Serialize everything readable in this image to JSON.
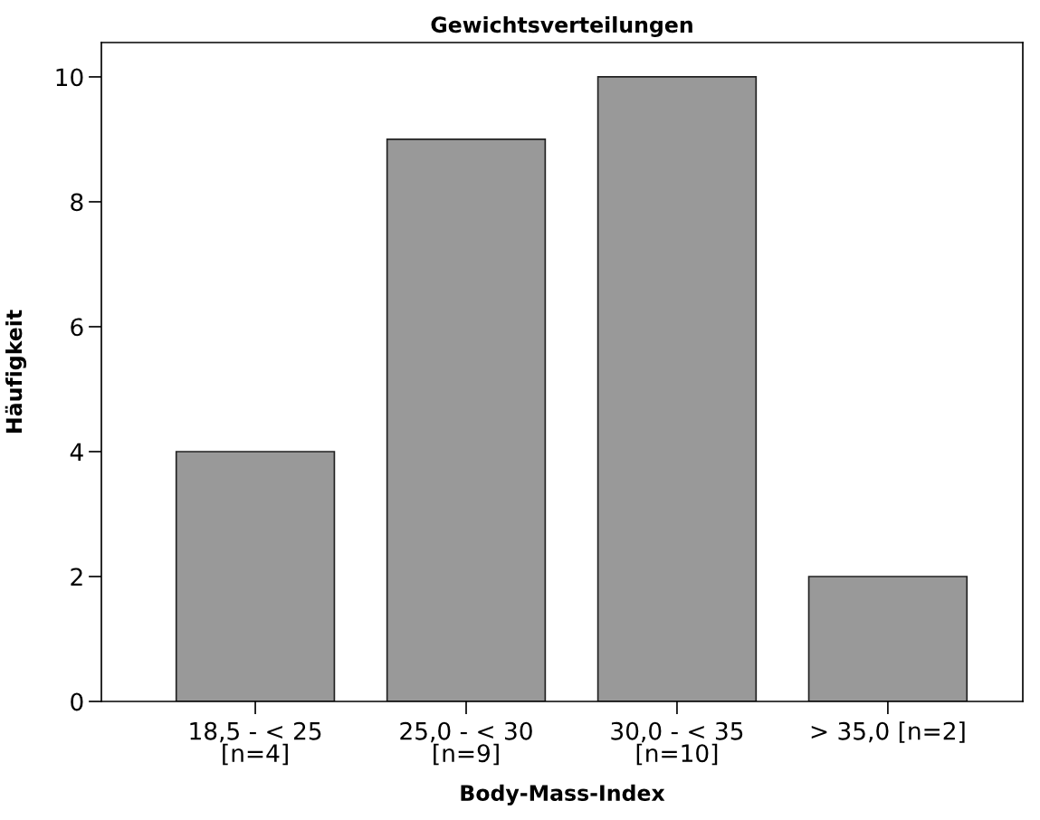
{
  "chart_data": {
    "type": "bar",
    "title": "Gewichtsverteilungen",
    "xlabel": "Body-Mass-Index",
    "ylabel": "Häufigkeit",
    "categories": [
      "18,5 - < 25\n[n=4]",
      "25,0 - < 30\n[n=9]",
      "30,0 - < 35\n[n=10]",
      "> 35,0 [n=2]"
    ],
    "values": [
      4,
      9,
      10,
      2
    ],
    "color": "#999999",
    "ylim": [
      0,
      10.55
    ],
    "yticks": [
      0,
      2,
      4,
      6,
      8,
      10
    ],
    "grid": false,
    "legend": false
  }
}
